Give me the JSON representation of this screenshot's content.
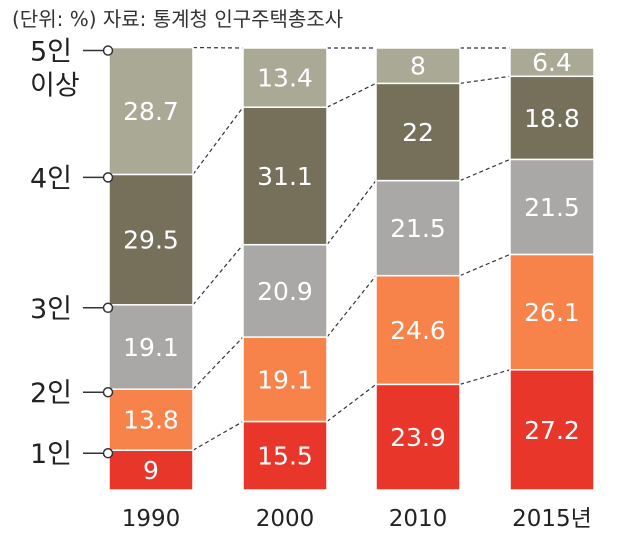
{
  "chart_data": {
    "type": "stacked-bar",
    "note": "(단위: %) 자료: 통계청 인구주택총조사",
    "categories": [
      "1990",
      "2000",
      "2010",
      "2015년"
    ],
    "series": [
      {
        "name": "1인",
        "color": "#e8372a",
        "values": [
          9,
          15.5,
          23.9,
          27.2
        ]
      },
      {
        "name": "2인",
        "color": "#f7824a",
        "values": [
          13.8,
          19.1,
          24.6,
          26.1
        ]
      },
      {
        "name": "3인",
        "color": "#a9a8a6",
        "values": [
          19.1,
          20.9,
          21.5,
          21.5
        ]
      },
      {
        "name": "4인",
        "color": "#76705a",
        "values": [
          29.5,
          31.1,
          22,
          18.8
        ]
      },
      {
        "name": "5인 이상",
        "color": "#aaa996",
        "values": [
          28.7,
          13.4,
          8,
          6.4
        ]
      }
    ],
    "value_labels": [
      [
        "9",
        "15.5",
        "23.9",
        "27.2"
      ],
      [
        "13.8",
        "19.1",
        "24.6",
        "26.1"
      ],
      [
        "19.1",
        "20.9",
        "21.5",
        "21.5"
      ],
      [
        "29.5",
        "31.1",
        "22",
        "18.8"
      ],
      [
        "28.7",
        "13.4",
        "8",
        "6.4"
      ]
    ],
    "legend": [
      {
        "lines": [
          "1인"
        ]
      },
      {
        "lines": [
          "2인"
        ]
      },
      {
        "lines": [
          "3인"
        ]
      },
      {
        "lines": [
          "4인"
        ]
      },
      {
        "lines": [
          "5인",
          "이상"
        ]
      }
    ],
    "ylim": [
      0,
      100
    ],
    "ylabel": "%"
  }
}
